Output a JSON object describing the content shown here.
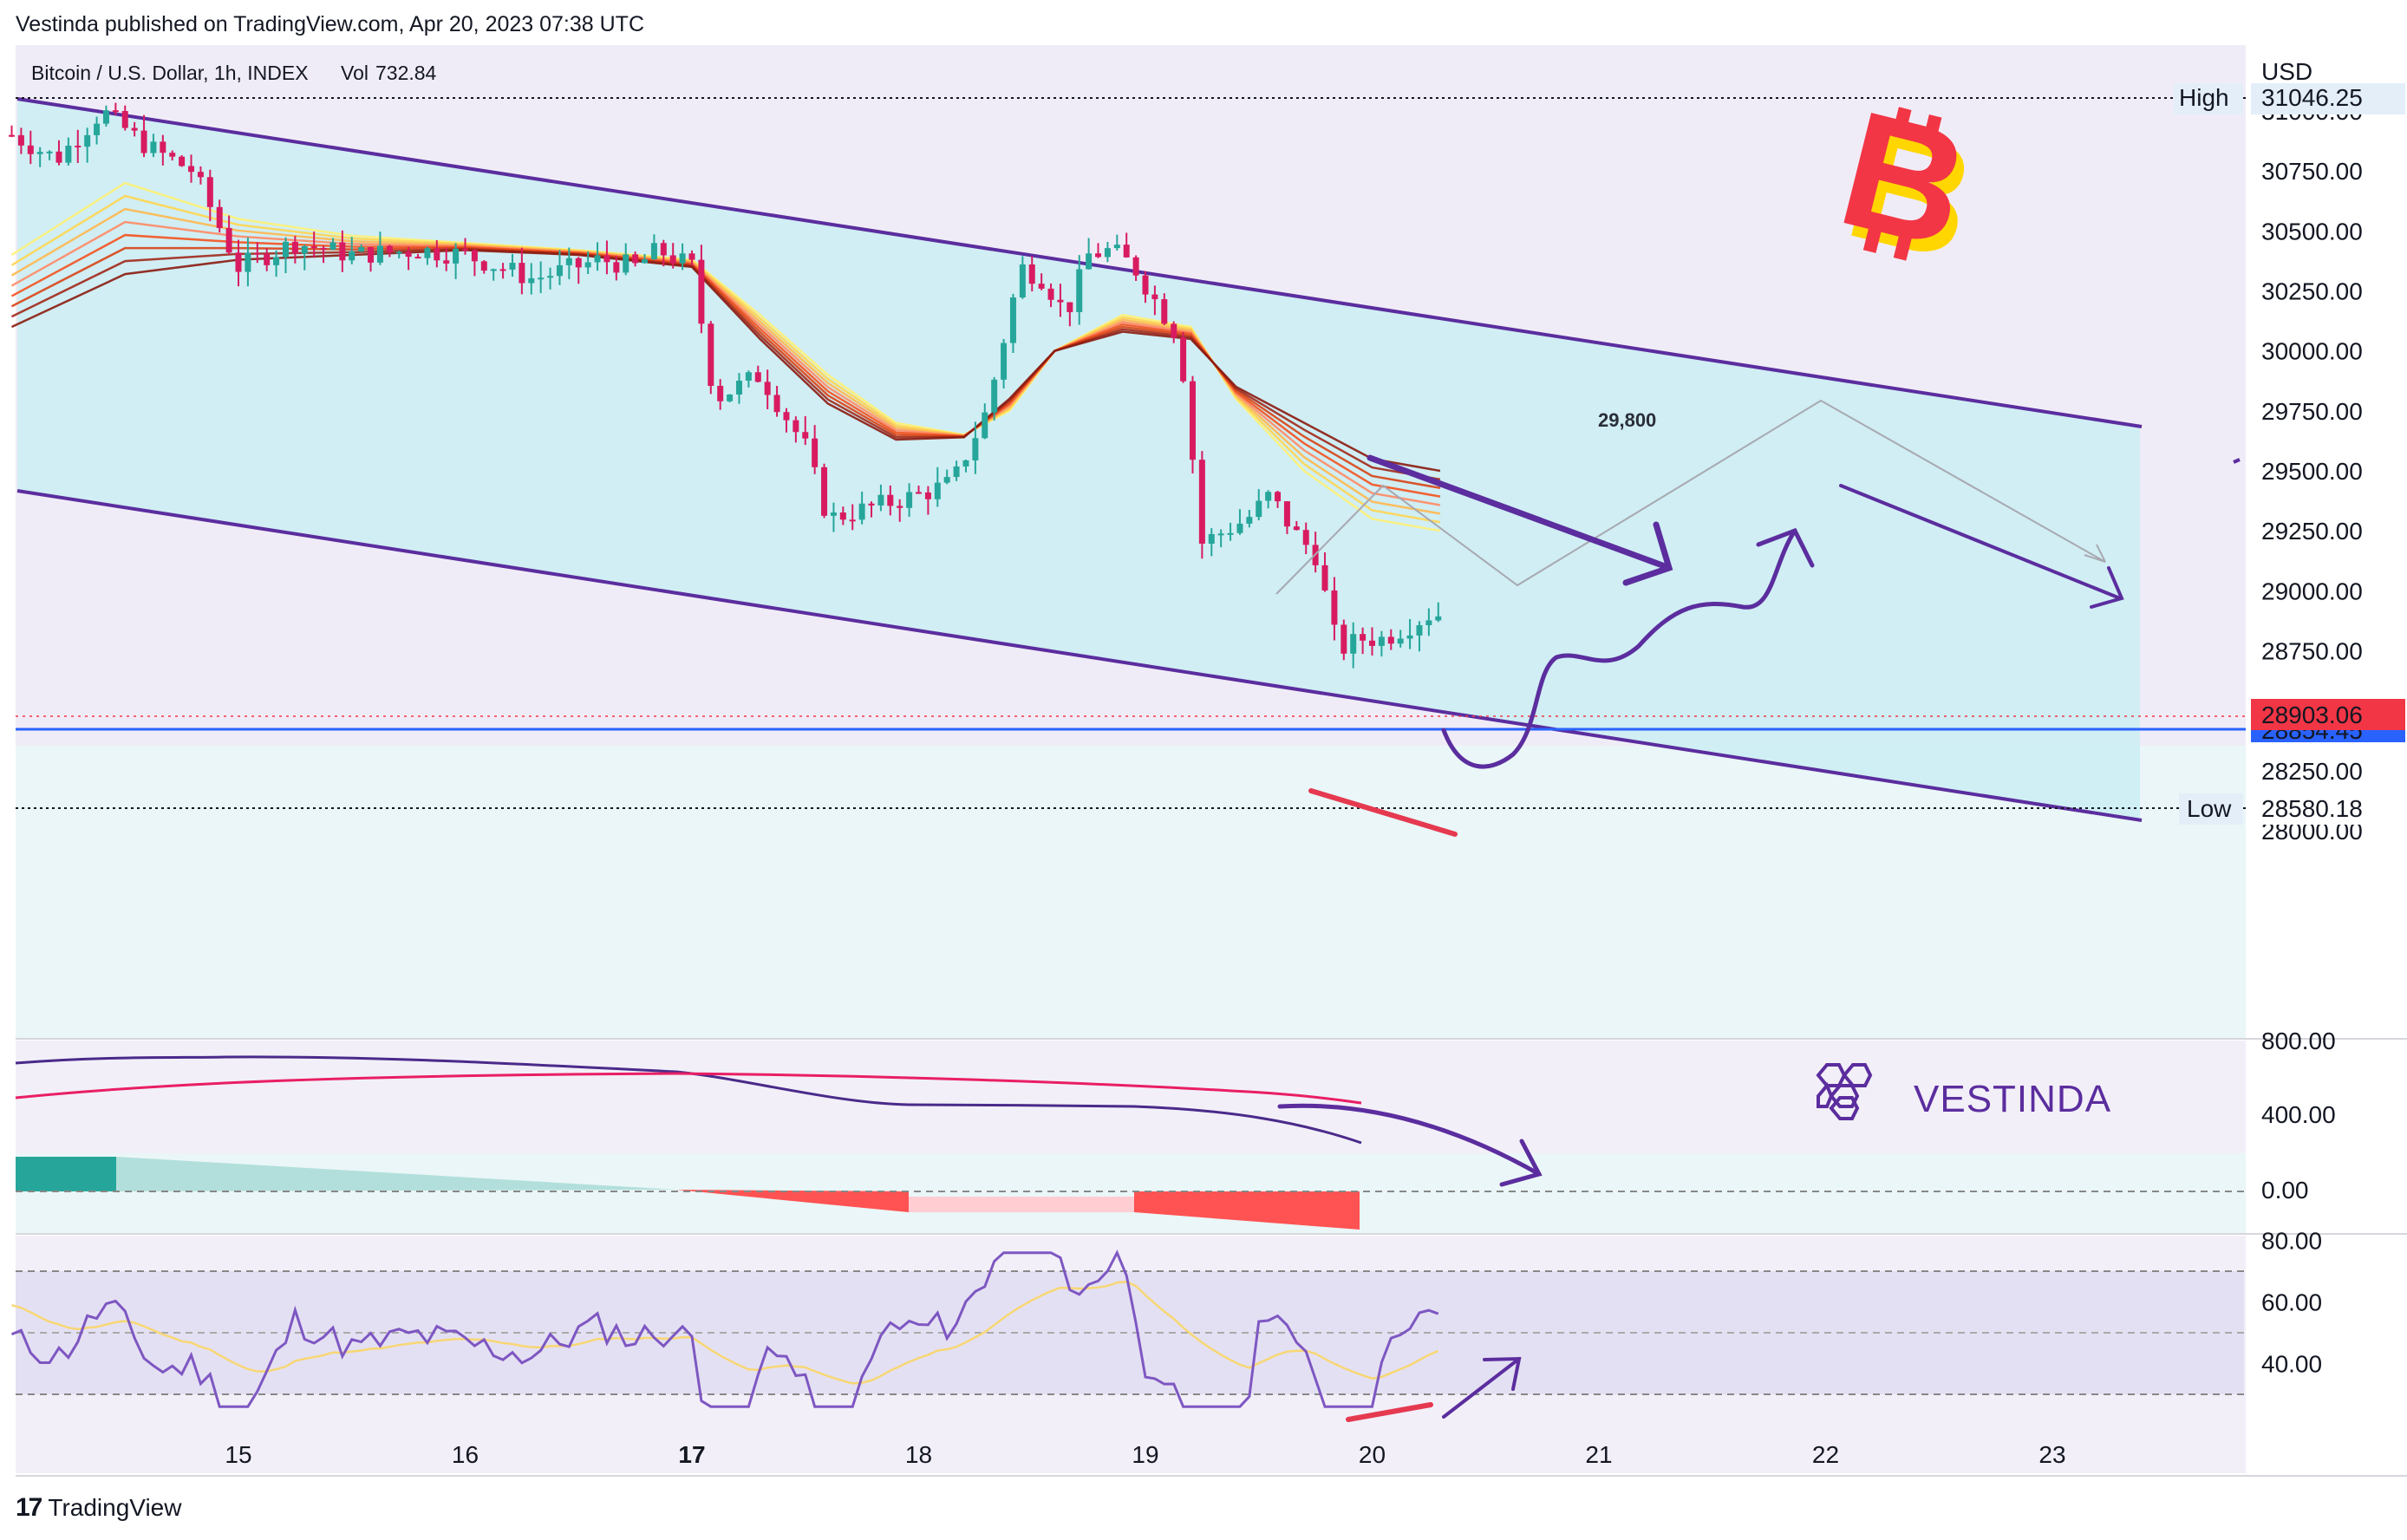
{
  "header": {
    "published": "Vestinda published on TradingView.com, Apr 20, 2023 07:38 UTC"
  },
  "legend": {
    "symbol": "Bitcoin / U.S. Dollar, 1h, INDEX",
    "vol_label": "Vol",
    "vol_value": "732.84"
  },
  "brand": {
    "name": "VESTINDA",
    "footer": "TradingView",
    "footer_glyph": "17"
  },
  "colors": {
    "up": "#26a69a",
    "down": "#d81b60",
    "channel": "#5b2d9e",
    "channel_fill": "#cdeef3",
    "price_line": "#2962ff",
    "bitcoin": "#f23645",
    "bitcoin_shadow": "#ffd600",
    "annotation": "#5b2d9e",
    "red_mark": "#e53950"
  },
  "chart_data": [
    {
      "type": "candlestick",
      "title": "Bitcoin / U.S. Dollar, 1h, INDEX",
      "currency": "USD",
      "x_ticks": [
        {
          "label": "15",
          "bold": false
        },
        {
          "label": "16",
          "bold": false
        },
        {
          "label": "17",
          "bold": true
        },
        {
          "label": "18",
          "bold": false
        },
        {
          "label": "19",
          "bold": false
        },
        {
          "label": "20",
          "bold": false
        },
        {
          "label": "21",
          "bold": false
        },
        {
          "label": "22",
          "bold": false
        },
        {
          "label": "23",
          "bold": false
        }
      ],
      "y_ticks": [
        "31000.00",
        "30750.00",
        "30500.00",
        "30250.00",
        "30000.00",
        "29750.00",
        "29500.00",
        "29250.00",
        "29000.00",
        "28750.00",
        "28500.00",
        "28250.00",
        "28000.00"
      ],
      "ylim": [
        27750,
        31250
      ],
      "high": {
        "label": "High",
        "value": "31046.25"
      },
      "low": {
        "label": "Low",
        "value": "28580.18"
      },
      "last_price": "28903.06",
      "blue_line_label": "28854.45",
      "target_label": "29,800",
      "path_x": [
        14.0,
        14.2,
        14.4,
        14.6,
        14.8,
        15.0,
        15.25,
        15.5,
        15.8,
        16.0,
        16.3,
        16.6,
        16.75,
        16.85,
        17.0,
        17.1,
        17.3,
        17.5,
        17.6,
        17.8,
        18.0,
        18.15,
        18.3,
        18.45,
        18.55,
        18.65,
        18.75,
        18.85,
        18.95,
        19.05,
        19.15,
        19.25,
        19.35,
        19.45,
        19.55,
        19.65,
        19.75,
        19.85,
        19.95,
        20.05,
        20.15,
        20.25,
        20.3
      ],
      "path_y": [
        30900,
        30800,
        31000,
        30850,
        30750,
        30350,
        30450,
        30400,
        30420,
        30400,
        30300,
        30380,
        30350,
        30420,
        30350,
        29800,
        29900,
        29600,
        29300,
        29350,
        29400,
        29450,
        29750,
        30350,
        30300,
        30150,
        30400,
        30420,
        30350,
        30200,
        30050,
        29200,
        29250,
        29300,
        29400,
        29250,
        29150,
        28750,
        28800,
        28800,
        28850,
        28900,
        28903
      ],
      "ribbon_x": [
        14.0,
        14.5,
        15.0,
        15.5,
        16.0,
        16.5,
        17.0,
        17.3,
        17.6,
        17.9,
        18.2,
        18.4,
        18.6,
        18.9,
        19.2,
        19.4,
        19.7,
        20.0,
        20.3
      ],
      "ribbon_upper": [
        30400,
        30700,
        30550,
        30480,
        30450,
        30420,
        30380,
        30150,
        29900,
        29700,
        29650,
        29750,
        30000,
        30150,
        30100,
        29800,
        29500,
        29300,
        29250
      ],
      "ribbon_lower": [
        30100,
        30320,
        30380,
        30400,
        30420,
        30400,
        30350,
        30050,
        29780,
        29630,
        29640,
        29800,
        30000,
        30080,
        30050,
        29850,
        29700,
        29550,
        29500
      ]
    },
    {
      "type": "line",
      "panel": "oscillator",
      "y_ticks": [
        "800.00",
        "400.00",
        "0.00"
      ],
      "series": []
    },
    {
      "type": "line",
      "panel": "rsi",
      "y_ticks": [
        "80.00",
        "60.00",
        "40.00"
      ],
      "ylim": [
        30,
        80
      ],
      "bands": [
        70,
        50,
        30
      ]
    }
  ]
}
